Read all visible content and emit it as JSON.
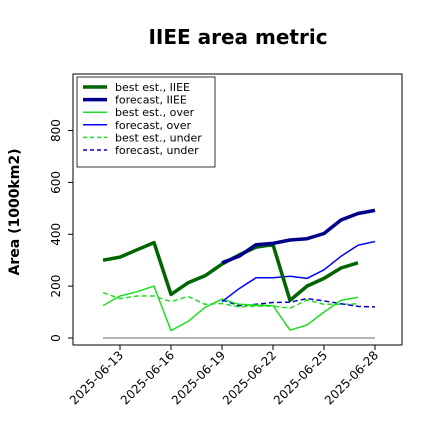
{
  "chart_data": {
    "type": "line",
    "title": "IIEE area metric",
    "xlabel": "",
    "ylabel": "Area (1000km2)",
    "ylim": [
      -15,
      1010
    ],
    "xticks": [
      "2025-06-13",
      "2025-06-16",
      "2025-06-19",
      "2025-06-22",
      "2025-06-25",
      "2025-06-28"
    ],
    "highlight_tick": "2025-06-19",
    "highlight_color": "#2e8b2e",
    "yticks": [
      0,
      200,
      400,
      600,
      800
    ],
    "grid": false,
    "legend_position": "top-left",
    "series": [
      {
        "name": "best est., IIEE",
        "color": "#006400",
        "style": "solid",
        "width": 3.5,
        "x": [
          0,
          1,
          2,
          3,
          4,
          5,
          6,
          7,
          8,
          9,
          10,
          11,
          12,
          13,
          14,
          15
        ],
        "y": [
          300,
          312,
          340,
          368,
          168,
          213,
          240,
          285,
          320,
          350,
          360,
          145,
          200,
          230,
          270,
          290
        ]
      },
      {
        "name": "forecast, IIEE",
        "color": "#00008b",
        "style": "solid",
        "width": 3.5,
        "x": [
          7,
          8,
          9,
          10,
          11,
          12,
          13,
          14,
          15,
          16
        ],
        "y": [
          290,
          315,
          360,
          365,
          378,
          383,
          403,
          455,
          480,
          492
        ]
      },
      {
        "name": "best est., over",
        "color": "#22dd22",
        "style": "solid",
        "width": 1.5,
        "x": [
          0,
          1,
          2,
          3,
          4,
          5,
          6,
          7,
          8,
          9,
          10,
          11,
          12,
          13,
          14,
          15
        ],
        "y": [
          125,
          162,
          178,
          200,
          28,
          64,
          118,
          150,
          130,
          127,
          125,
          30,
          50,
          100,
          145,
          157
        ]
      },
      {
        "name": "forecast, over",
        "color": "#0000ff",
        "style": "solid",
        "width": 1.5,
        "x": [
          7,
          8,
          9,
          10,
          11,
          12,
          13,
          14,
          15,
          16
        ],
        "y": [
          140,
          190,
          232,
          232,
          238,
          230,
          263,
          315,
          358,
          372
        ]
      },
      {
        "name": "best est., under",
        "color": "#22dd22",
        "style": "dashed",
        "width": 1.5,
        "x": [
          0,
          1,
          2,
          3,
          4,
          5,
          6,
          7,
          8,
          9,
          10,
          11,
          12,
          13,
          14,
          15
        ],
        "y": [
          175,
          152,
          162,
          162,
          140,
          160,
          130,
          133,
          120,
          123,
          123,
          115,
          147,
          130,
          130,
          132
        ]
      },
      {
        "name": "forecast, under",
        "color": "#0000cc",
        "style": "dashed",
        "width": 1.5,
        "x": [
          7,
          8,
          9,
          10,
          11,
          12,
          13,
          14,
          15,
          16
        ],
        "y": [
          147,
          125,
          130,
          137,
          138,
          152,
          143,
          132,
          122,
          120
        ]
      },
      {
        "color": "#888888",
        "style": "solid",
        "width": 1.2,
        "x": [
          0,
          16
        ],
        "y": [
          0,
          0
        ]
      }
    ]
  }
}
